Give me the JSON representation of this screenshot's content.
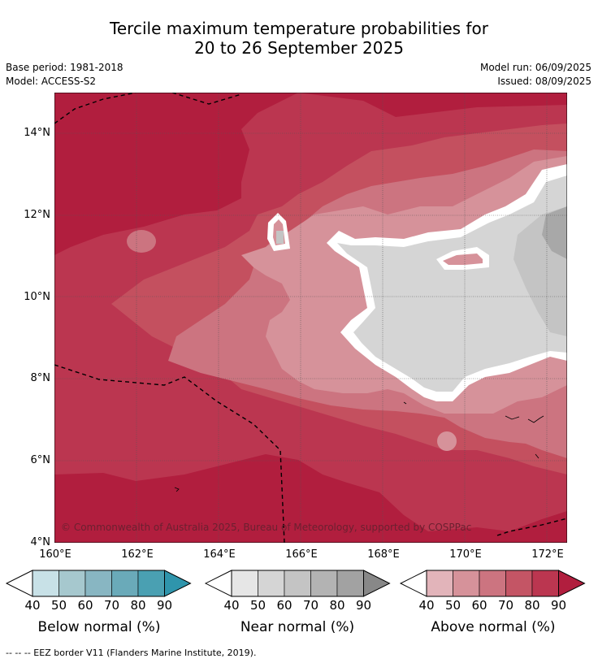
{
  "header": {
    "title_line1": "Tercile maximum temperature probabilities for",
    "title_line2": "20 to 26 September 2025",
    "base_period": "Base period: 1981-2018",
    "model": "Model: ACCESS-S2",
    "model_run": "Model run: 06/09/2025",
    "issued": "Issued: 08/09/2025"
  },
  "map": {
    "lat_labels": [
      "14°N",
      "12°N",
      "10°N",
      "8°N",
      "6°N",
      "4°N"
    ],
    "lon_labels": [
      "160°E",
      "162°E",
      "164°E",
      "166°E",
      "168°E",
      "170°E",
      "172°E"
    ],
    "copyright": "© Commonwealth of Australia 2025, Bureau of Meteorology, supported by COSPPac"
  },
  "legends": [
    {
      "name": "Below normal (%)",
      "ticks": [
        "40",
        "50",
        "60",
        "70",
        "80",
        "90"
      ],
      "colors": [
        "#c8e1e7",
        "#a6c8ce",
        "#88b6c2",
        "#6aaab9",
        "#4aa0b2",
        "#2f95ac"
      ]
    },
    {
      "name": "Near normal (%)",
      "ticks": [
        "40",
        "50",
        "60",
        "70",
        "80",
        "90"
      ],
      "colors": [
        "#e6e6e6",
        "#d5d5d5",
        "#c4c4c4",
        "#b3b3b3",
        "#a2a2a2",
        "#888888"
      ]
    },
    {
      "name": "Above normal (%)",
      "ticks": [
        "40",
        "50",
        "60",
        "70",
        "80",
        "90"
      ],
      "colors": [
        "#e2b4ba",
        "#d6929a",
        "#cc7480",
        "#c45565",
        "#bb3650",
        "#b11e3e"
      ]
    }
  ],
  "footnote": "--  --  -- EEZ border V11 (Flanders Marine Institute, 2019)."
}
